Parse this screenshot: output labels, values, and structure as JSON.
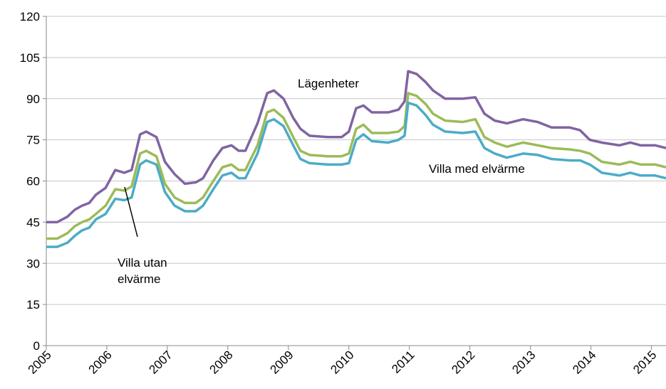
{
  "chart_data": {
    "type": "line",
    "x": [
      2005.0,
      2005.18,
      2005.35,
      2005.47,
      2005.59,
      2005.71,
      2005.82,
      2005.98,
      2006.14,
      2006.29,
      2006.41,
      2006.55,
      2006.65,
      2006.82,
      2006.96,
      2007.12,
      2007.29,
      2007.47,
      2007.59,
      2007.76,
      2007.91,
      2008.06,
      2008.18,
      2008.29,
      2008.49,
      2008.65,
      2008.76,
      2008.92,
      2009.08,
      2009.2,
      2009.35,
      2009.65,
      2009.88,
      2010.0,
      2010.12,
      2010.24,
      2010.38,
      2010.65,
      2010.82,
      2010.92,
      2010.98,
      2011.12,
      2011.27,
      2011.39,
      2011.59,
      2011.88,
      2012.09,
      2012.24,
      2012.41,
      2012.61,
      2012.88,
      2013.12,
      2013.35,
      2013.65,
      2013.82,
      2013.98,
      2014.18,
      2014.47,
      2014.65,
      2014.82,
      2015.06,
      2015.24
    ],
    "series": [
      {
        "color": "#8064a2",
        "values": [
          45,
          45,
          47,
          49.5,
          51,
          52,
          55,
          57.5,
          64,
          63,
          64,
          77,
          78,
          76,
          67,
          62.5,
          59,
          59.5,
          61,
          67.5,
          72,
          73,
          71,
          71,
          81,
          92,
          93,
          90,
          83,
          79,
          76.5,
          76,
          76,
          78,
          86.5,
          87.5,
          85,
          85,
          86,
          89,
          100,
          99,
          96,
          93,
          90,
          90,
          90.5,
          84.5,
          82,
          81,
          82.5,
          81.5,
          79.5,
          79.5,
          78.5,
          75,
          74,
          73,
          74,
          73,
          73,
          72
        ]
      },
      {
        "color": "#9bbb59",
        "values": [
          39,
          39,
          41,
          43.5,
          45,
          46,
          48,
          51,
          57,
          56.5,
          58,
          70,
          71,
          69,
          59,
          54,
          52,
          52,
          54,
          60,
          65,
          66,
          64,
          64,
          73,
          85,
          86,
          83,
          76,
          71,
          69.5,
          69,
          69,
          70,
          79,
          80.5,
          77.5,
          77.5,
          78,
          80,
          92,
          91,
          88,
          84.5,
          82,
          81.5,
          82.5,
          76,
          74,
          72.5,
          74,
          73,
          72,
          71.5,
          71,
          70,
          67,
          66,
          67,
          66,
          66,
          65
        ]
      },
      {
        "color": "#4bacc6",
        "values": [
          36,
          36,
          37.5,
          40,
          42,
          43,
          46,
          48,
          53.5,
          53,
          54,
          66,
          67.5,
          66,
          56,
          51,
          49,
          49,
          51,
          57,
          62,
          63,
          61,
          61,
          70,
          81.5,
          82.5,
          80,
          73,
          68,
          66.5,
          66,
          66,
          66.5,
          75,
          77,
          74.5,
          74,
          75,
          76.5,
          88.5,
          87.5,
          84,
          80.5,
          78,
          77.5,
          78,
          72,
          70,
          68.5,
          70,
          69.5,
          68,
          67.5,
          67.5,
          66,
          63,
          62,
          63,
          62,
          62,
          61
        ]
      }
    ],
    "xlim": [
      2005,
      2015.24
    ],
    "xticks": [
      2005,
      2006,
      2007,
      2008,
      2009,
      2010,
      2011,
      2012,
      2013,
      2014,
      2015
    ],
    "ylim": [
      0,
      120
    ],
    "yticks": [
      0,
      15,
      30,
      45,
      60,
      75,
      90,
      105,
      120
    ],
    "grid": true,
    "annotations": [
      {
        "lines": [
          "Lägenheter"
        ]
      },
      {
        "lines": [
          "Villa med elvärme"
        ]
      },
      {
        "lines": [
          "Villa utan",
          "elvärme"
        ]
      }
    ]
  }
}
